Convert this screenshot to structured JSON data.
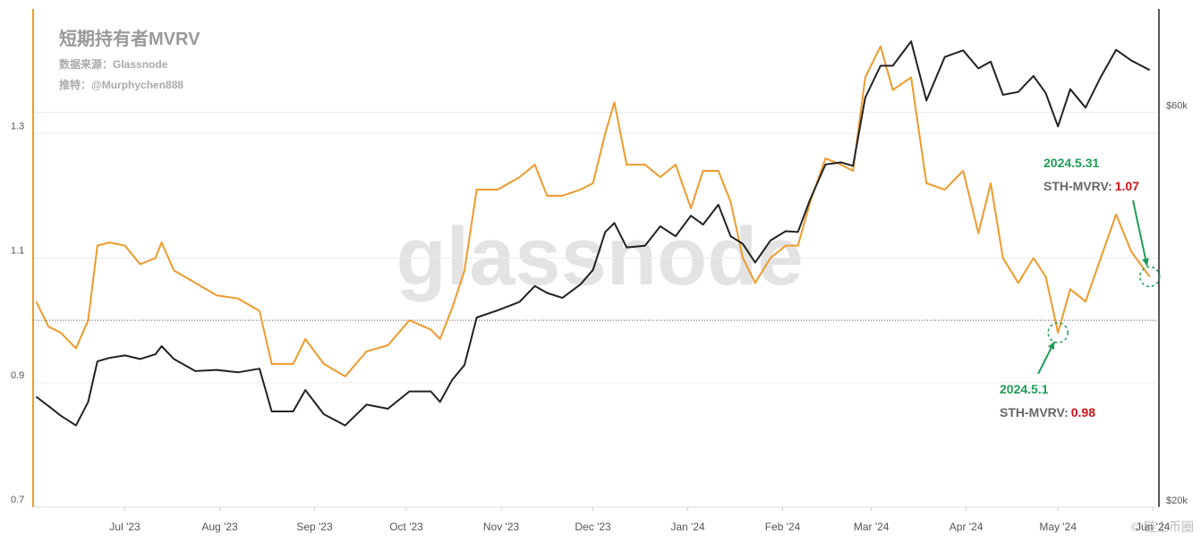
{
  "chart_data": {
    "type": "line",
    "title": "短期持有者MVRV",
    "source": "数据来源：Glassnode",
    "author": "推特：@Murphychen888",
    "watermark": "glassnode",
    "corner_mark": "© 链上币圈",
    "x": [
      "2023-06-02",
      "2023-06-06",
      "2023-06-10",
      "2023-06-15",
      "2023-06-19",
      "2023-06-22",
      "2023-06-26",
      "2023-07-01",
      "2023-07-06",
      "2023-07-11",
      "2023-07-13",
      "2023-07-17",
      "2023-07-24",
      "2023-07-31",
      "2023-08-07",
      "2023-08-14",
      "2023-08-18",
      "2023-08-25",
      "2023-08-29",
      "2023-09-04",
      "2023-09-11",
      "2023-09-18",
      "2023-09-25",
      "2023-10-02",
      "2023-10-09",
      "2023-10-12",
      "2023-10-16",
      "2023-10-20",
      "2023-10-24",
      "2023-10-31",
      "2023-11-07",
      "2023-11-12",
      "2023-11-16",
      "2023-11-21",
      "2023-11-27",
      "2023-12-01",
      "2023-12-05",
      "2023-12-08",
      "2023-12-12",
      "2023-12-18",
      "2023-12-23",
      "2023-12-28",
      "2024-01-02",
      "2024-01-06",
      "2024-01-11",
      "2024-01-15",
      "2024-01-19",
      "2024-01-23",
      "2024-01-28",
      "2024-02-02",
      "2024-02-06",
      "2024-02-10",
      "2024-02-15",
      "2024-02-20",
      "2024-02-24",
      "2024-02-28",
      "2024-03-04",
      "2024-03-08",
      "2024-03-14",
      "2024-03-19",
      "2024-03-25",
      "2024-03-31",
      "2024-04-05",
      "2024-04-09",
      "2024-04-13",
      "2024-04-18",
      "2024-04-23",
      "2024-04-27",
      "2024-05-01",
      "2024-05-05",
      "2024-05-10",
      "2024-05-15",
      "2024-05-20",
      "2024-05-25",
      "2024-05-31"
    ],
    "series": [
      {
        "color": "#ee9a2c",
        "values": [
          1.03,
          0.99,
          0.98,
          0.955,
          1.0,
          1.12,
          1.125,
          1.12,
          1.09,
          1.1,
          1.125,
          1.08,
          1.06,
          1.04,
          1.035,
          1.015,
          0.93,
          0.93,
          0.97,
          0.93,
          0.91,
          0.95,
          0.96,
          1.0,
          0.985,
          0.97,
          1.02,
          1.08,
          1.21,
          1.21,
          1.23,
          1.25,
          1.2,
          1.2,
          1.21,
          1.22,
          1.3,
          1.35,
          1.25,
          1.25,
          1.23,
          1.25,
          1.18,
          1.24,
          1.24,
          1.19,
          1.1,
          1.06,
          1.1,
          1.12,
          1.12,
          1.19,
          1.26,
          1.25,
          1.24,
          1.39,
          1.44,
          1.37,
          1.39,
          1.22,
          1.21,
          1.24,
          1.14,
          1.22,
          1.1,
          1.06,
          1.1,
          1.07,
          0.98,
          1.05,
          1.03,
          1.1,
          1.17,
          1.11,
          1.07
        ]
      },
      {
        "color": "#222222",
        "axis": "y2",
        "values": [
          27200,
          26500,
          25800,
          25100,
          26800,
          30000,
          30300,
          30500,
          30200,
          30600,
          31300,
          30200,
          29200,
          29300,
          29100,
          29400,
          26100,
          26100,
          27700,
          25900,
          25100,
          26600,
          26300,
          27600,
          27600,
          26800,
          28500,
          29700,
          33900,
          34600,
          35400,
          37000,
          36300,
          35800,
          37200,
          38700,
          43000,
          44100,
          41200,
          41400,
          43700,
          42500,
          45000,
          43900,
          46400,
          42500,
          41600,
          39500,
          42000,
          43100,
          43000,
          47100,
          51900,
          52200,
          51700,
          62500,
          68300,
          68300,
          73100,
          62000,
          70000,
          71300,
          67800,
          69100,
          63000,
          63500,
          66400,
          63300,
          57700,
          64000,
          60800,
          66200,
          71400,
          69300,
          67500
        ]
      }
    ],
    "xlim": [
      "2023-06-01",
      "2024-06-03"
    ],
    "xticks": [
      {
        "value": "2023-07-01",
        "label": "Jul '23"
      },
      {
        "value": "2023-08-01",
        "label": "Aug '23"
      },
      {
        "value": "2023-09-01",
        "label": "Sep '23"
      },
      {
        "value": "2023-10-01",
        "label": "Oct '23"
      },
      {
        "value": "2023-11-01",
        "label": "Nov '23"
      },
      {
        "value": "2023-12-01",
        "label": "Dec '23"
      },
      {
        "value": "2024-01-01",
        "label": "Jan '24"
      },
      {
        "value": "2024-02-01",
        "label": "Feb '24"
      },
      {
        "value": "2024-03-01",
        "label": "Mar '24"
      },
      {
        "value": "2024-04-01",
        "label": "Apr '24"
      },
      {
        "value": "2024-05-01",
        "label": "May '24"
      },
      {
        "value": "2024-06-01",
        "label": "Jun '24"
      }
    ],
    "ylim": [
      0.7,
      1.5
    ],
    "yticks": [
      0.7,
      0.9,
      1.1,
      1.3
    ],
    "y2lim": [
      20000,
      80000
    ],
    "y2ticks": [
      {
        "value": 20000,
        "label": "$20k"
      },
      {
        "value": 60000,
        "label": "$60k"
      }
    ],
    "y2_log": true,
    "grid": true,
    "reference_line": 1,
    "annotations": [
      {
        "date": "2024.5.31",
        "label": "STH-MVRV:",
        "value": 1.07
      },
      {
        "date": "2024.5.1",
        "label": "STH-MVRV:",
        "value": 0.98
      }
    ]
  }
}
